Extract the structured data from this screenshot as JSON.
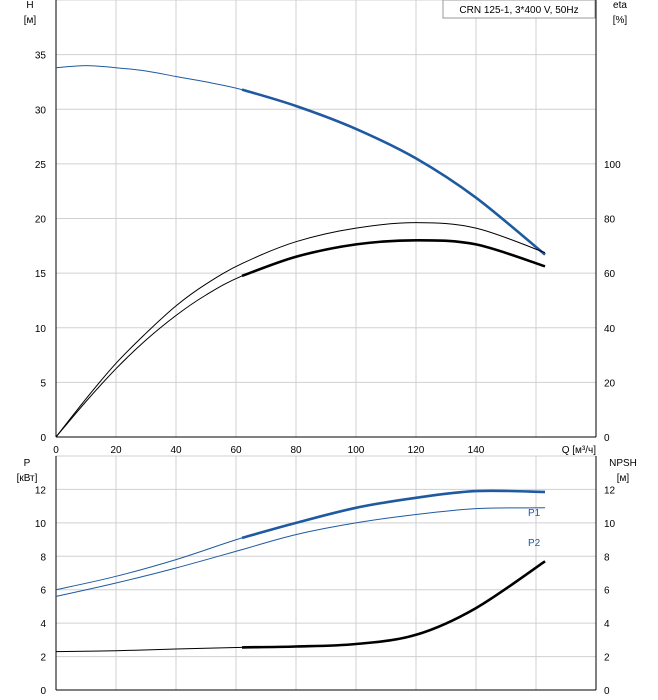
{
  "colors": {
    "blue": "#1f5aa0",
    "black": "#000000",
    "grid": "#d0d0d0"
  },
  "chart_data": [
    {
      "type": "line",
      "title": "CRN 125-1, 3*400 V, 50Hz",
      "xlabel": "Q [м³/ч]",
      "ylabel": "H\n[м]",
      "ylabel_top": "H",
      "ylabel_unit": "[м]",
      "y2label_top": "eta",
      "y2label_unit": "[%]",
      "xlim": [
        0,
        180
      ],
      "ylim": [
        0,
        40
      ],
      "y2lim": [
        0,
        160
      ],
      "xticks": [
        0,
        20,
        40,
        60,
        80,
        100,
        120,
        140
      ],
      "xticklabels": [
        "0",
        "20",
        "40",
        "60",
        "80",
        "100",
        "120",
        "140"
      ],
      "yticks": [
        0,
        5,
        10,
        15,
        20,
        25,
        30,
        35
      ],
      "yticklabels": [
        "0",
        "5",
        "10",
        "15",
        "20",
        "25",
        "30",
        "35"
      ],
      "y2ticks": [
        0,
        20,
        40,
        60,
        80,
        100
      ],
      "y2ticklabels": [
        "0",
        "20",
        "40",
        "60",
        "80",
        "100"
      ],
      "grid": true,
      "series": [
        {
          "name": "H",
          "axis": "left",
          "color": "#1f5aa0",
          "x": [
            0,
            10,
            20,
            30,
            40,
            50,
            62,
            80,
            100,
            120,
            140,
            163
          ],
          "y": [
            33.8,
            34.0,
            33.8,
            33.5,
            33.0,
            32.5,
            31.8,
            30.3,
            28.2,
            25.5,
            21.9,
            16.7
          ],
          "bold_from": 62
        },
        {
          "name": "eta",
          "axis": "right",
          "color": "#000000",
          "x": [
            0,
            10,
            20,
            30,
            40,
            50,
            62,
            80,
            100,
            120,
            140,
            163
          ],
          "y": [
            0,
            14,
            27,
            38,
            48,
            56,
            63.5,
            71.5,
            76.5,
            78.5,
            76.5,
            67.5
          ],
          "bold_from": 9999
        },
        {
          "name": "eta-bold",
          "axis": "right",
          "color": "#000000",
          "x": [
            0,
            10,
            20,
            30,
            40,
            50,
            62,
            80,
            100,
            120,
            140,
            163
          ],
          "y": [
            0,
            13,
            25,
            35.5,
            44.5,
            52,
            59,
            66,
            70.5,
            72,
            70.5,
            62.5
          ],
          "bold_from": 62
        }
      ]
    },
    {
      "type": "line",
      "xlabel": "",
      "ylabel_top": "P",
      "ylabel_unit": "[кВт]",
      "y2label_top": "NPSH",
      "y2label_unit": "[м]",
      "xlim": [
        0,
        180
      ],
      "ylim": [
        0,
        14
      ],
      "y2lim": [
        0,
        14
      ],
      "yticks": [
        0,
        2,
        4,
        6,
        8,
        10,
        12
      ],
      "yticklabels": [
        "0",
        "2",
        "4",
        "6",
        "8",
        "10",
        "12"
      ],
      "y2ticks": [
        0,
        2,
        4,
        6,
        8,
        10,
        12
      ],
      "y2ticklabels": [
        "0",
        "2",
        "4",
        "6",
        "8",
        "10",
        "12"
      ],
      "grid": true,
      "series": [
        {
          "name": "P1",
          "axis": "left",
          "color": "#1f5aa0",
          "x": [
            0,
            20,
            40,
            62,
            80,
            100,
            120,
            140,
            163
          ],
          "y": [
            6.0,
            6.8,
            7.8,
            9.1,
            10.0,
            10.9,
            11.5,
            11.9,
            11.85
          ],
          "bold_from": 62
        },
        {
          "name": "P2",
          "axis": "left",
          "color": "#1f5aa0",
          "x": [
            0,
            20,
            40,
            62,
            80,
            100,
            120,
            140,
            163
          ],
          "y": [
            5.6,
            6.4,
            7.3,
            8.4,
            9.3,
            10.0,
            10.5,
            10.85,
            10.9
          ],
          "bold_from": 9999
        },
        {
          "name": "NPSH",
          "axis": "right",
          "color": "#000000",
          "x": [
            0,
            20,
            40,
            62,
            80,
            100,
            120,
            140,
            163
          ],
          "y": [
            2.3,
            2.35,
            2.45,
            2.55,
            2.6,
            2.75,
            3.3,
            4.9,
            7.7
          ],
          "bold_from": 62
        }
      ],
      "series_labels": [
        "P1",
        "P2"
      ]
    }
  ]
}
